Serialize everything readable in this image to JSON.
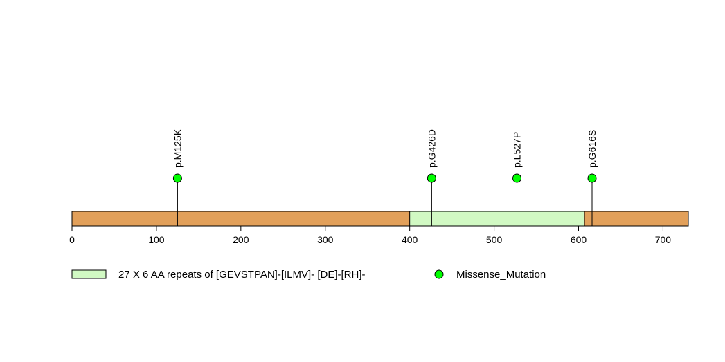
{
  "chart_data": {
    "type": "lollipop",
    "protein_length": 730,
    "xlim": [
      0,
      730
    ],
    "x_ticks": [
      0,
      100,
      200,
      300,
      400,
      500,
      600,
      700
    ],
    "backbone_color": "#E2A05A",
    "domains": [
      {
        "start": 400,
        "end": 607,
        "color": "#D1F9C3"
      }
    ],
    "mutations": [
      {
        "label": "p.M125K",
        "position": 125,
        "type": "Missense_Mutation"
      },
      {
        "label": "p.G426D",
        "position": 426,
        "type": "Missense_Mutation"
      },
      {
        "label": "p.L527P",
        "position": 527,
        "type": "Missense_Mutation"
      },
      {
        "label": "p.G616S",
        "position": 616,
        "type": "Missense_Mutation"
      }
    ],
    "legend": [
      {
        "label": "27 X 6 AA repeats of [GEVSTPAN]-[ILMV]- [DE]-[RH]-",
        "shape": "rect",
        "color": "#D1F9C3"
      },
      {
        "label": "Missense_Mutation",
        "shape": "circle",
        "color": "#00FF00"
      }
    ]
  }
}
